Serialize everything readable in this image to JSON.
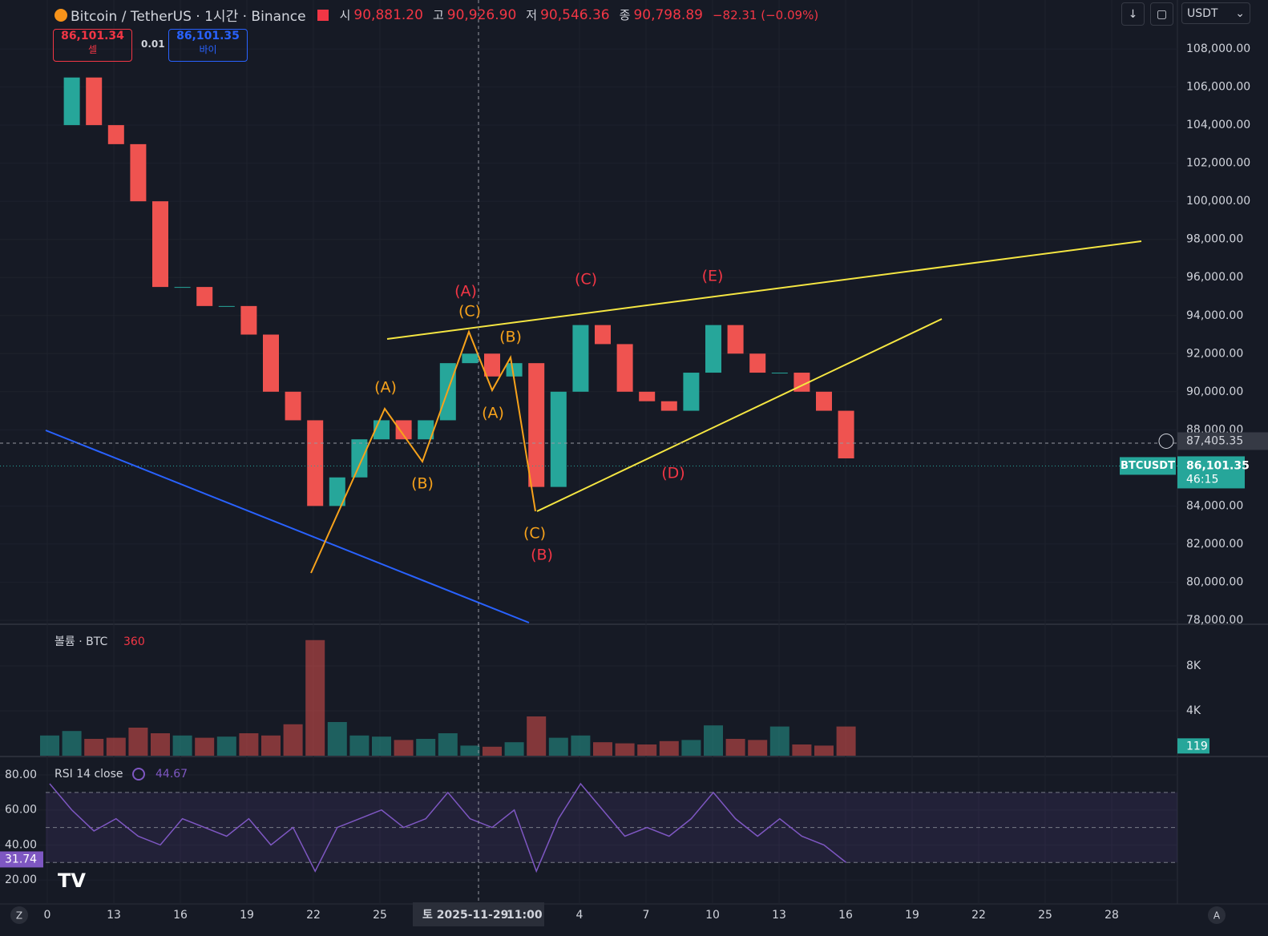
{
  "header": {
    "symbol": "Bitcoin / TetherUS · 1시간 · Binance",
    "ohlc": [
      {
        "label": "시",
        "value": "90,881.20"
      },
      {
        "label": "고",
        "value": "90,926.90"
      },
      {
        "label": "저",
        "value": "90,546.36"
      },
      {
        "label": "종",
        "value": "90,798.89"
      }
    ],
    "change": "−82.31 (−0.09%)"
  },
  "trade": {
    "sell_price": "86,101.34",
    "sell_label": "셀",
    "quantity": "0.01",
    "buy_price": "86,101.35",
    "buy_label": "바이"
  },
  "currency": "USDT",
  "crosshair": {
    "date": "토 2025-11-29",
    "time": "11:00"
  },
  "x_axis": {
    "labels": [
      "0",
      "13",
      "16",
      "19",
      "22",
      "25",
      "4",
      "7",
      "10",
      "13",
      "16",
      "19",
      "22",
      "25",
      "28"
    ]
  },
  "corner_labels": {
    "left": "Z",
    "right": "A"
  },
  "annotations": [
    {
      "text": "(A)",
      "color": "#f7a21b"
    },
    {
      "text": "(B)",
      "color": "#f7a21b"
    },
    {
      "text": "(C)",
      "color": "#f7a21b"
    },
    {
      "text": "(B)",
      "color": "#f7a21b"
    },
    {
      "text": "(A)",
      "color": "#f7a21b"
    },
    {
      "text": "(C)",
      "color": "#f7a21b"
    },
    {
      "text": "(A)",
      "color": "#f23645"
    },
    {
      "text": "(C)",
      "color": "#f23645"
    },
    {
      "text": "(E)",
      "color": "#f23645"
    },
    {
      "text": "(D)",
      "color": "#f23645"
    },
    {
      "text": "(B)",
      "color": "#f23645"
    }
  ],
  "chart_data": [
    {
      "type": "candlestick",
      "up_color": "#26a69a",
      "down_color": "#ef5350",
      "values": [
        104000,
        106500,
        104000,
        103000,
        100000,
        95500,
        95500,
        94500,
        94500,
        93000,
        90000,
        88500,
        84000,
        85500,
        87500,
        88500,
        87500,
        88500,
        91500,
        92000,
        90800,
        91500,
        85000,
        90000,
        93500,
        92500,
        90000,
        89500,
        89000,
        91000,
        93500,
        92000,
        91000,
        91000,
        90000,
        89000,
        86500
      ],
      "ylim": [
        77830,
        110570
      ],
      "yticks": [
        {
          "value": 108000,
          "label": "108,000.00"
        },
        {
          "value": 106000,
          "label": "106,000.00"
        },
        {
          "value": 104000,
          "label": "104,000.00"
        },
        {
          "value": 102000,
          "label": "102,000.00"
        },
        {
          "value": 100000,
          "label": "100,000.00"
        },
        {
          "value": 98000,
          "label": "98,000.00"
        },
        {
          "value": 96000,
          "label": "96,000.00"
        },
        {
          "value": 94000,
          "label": "94,000.00"
        },
        {
          "value": 92000,
          "label": "92,000.00"
        },
        {
          "value": 90000,
          "label": "90,000.00"
        },
        {
          "value": 88000,
          "label": "88,000.00"
        },
        {
          "value": 84000,
          "label": "84,000.00"
        },
        {
          "value": 82000,
          "label": "82,000.00"
        },
        {
          "value": 80000,
          "label": "80,000.00"
        },
        {
          "value": 78000,
          "label": "78,000.00"
        }
      ],
      "crosshair_price": {
        "value": 87405.35,
        "label": "87,405.35"
      },
      "last_price": {
        "value": 86101.35,
        "label": "86,101.35"
      },
      "last_symbol": "BTCUSDT",
      "countdown": "46:15",
      "grid": true
    },
    {
      "type": "bar",
      "title": "볼륨 · BTC",
      "title_value": "360",
      "values": [
        1800,
        2200,
        1500,
        1600,
        2500,
        2000,
        1800,
        1600,
        1700,
        2000,
        1800,
        2800,
        10300,
        3000,
        1800,
        1700,
        1400,
        1500,
        2000,
        900,
        800,
        1200,
        3500,
        1600,
        1800,
        1200,
        1100,
        1000,
        1300,
        1400,
        2700,
        1500,
        1400,
        2600,
        1000,
        900,
        2600
      ],
      "ylim": [
        0,
        11640
      ],
      "yticks": [
        {
          "value": 8000,
          "label": "8K"
        },
        {
          "value": 4000,
          "label": "4K"
        }
      ],
      "last_value": 119,
      "grid": true
    },
    {
      "type": "line",
      "title": "RSI 14 close",
      "title_value": "44.67",
      "color": "#7e57c2",
      "values": [
        75,
        60,
        48,
        55,
        45,
        40,
        55,
        50,
        45,
        55,
        40,
        50,
        25,
        50,
        55,
        60,
        50,
        55,
        70,
        55,
        50,
        60,
        25,
        55,
        75,
        60,
        45,
        50,
        45,
        55,
        70,
        55,
        45,
        55,
        45,
        40,
        30
      ],
      "ylim": [
        6.3,
        90.1
      ],
      "yticks": [
        {
          "value": 80,
          "label": "80.00"
        },
        {
          "value": 60,
          "label": "60.00"
        },
        {
          "value": 40,
          "label": "40.00"
        },
        {
          "value": 20,
          "label": "20.00"
        }
      ],
      "bands": [
        70,
        50,
        30
      ],
      "last_value": {
        "value": 31.74,
        "label": "31.74"
      },
      "grid": true
    }
  ]
}
